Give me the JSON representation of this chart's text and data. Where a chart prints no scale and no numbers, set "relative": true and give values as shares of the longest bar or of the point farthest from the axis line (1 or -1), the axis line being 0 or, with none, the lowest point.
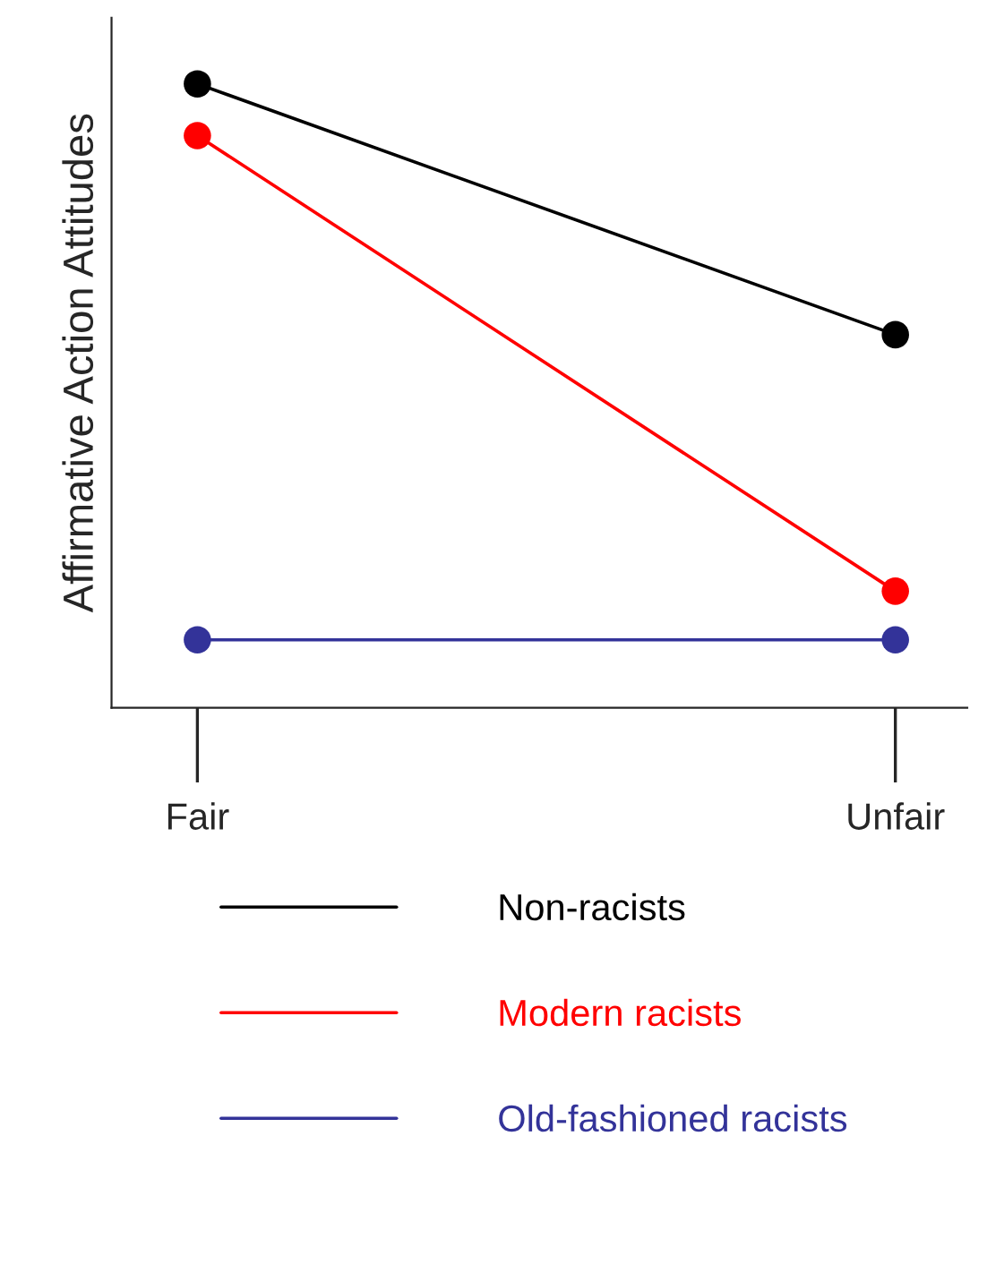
{
  "chart_data": {
    "type": "line",
    "ylabel": "Affirmative Action Attitudes",
    "categories": [
      "Fair",
      "Unfair"
    ],
    "relative": true,
    "marker": "circle",
    "legend": "bottom",
    "grid": false,
    "series": [
      {
        "name": "Non-racists",
        "color": "#000000",
        "values": [
          1,
          0.598
        ]
      },
      {
        "name": "Modern racists",
        "color": "#ff0000",
        "values": [
          0.917,
          0.187
        ]
      },
      {
        "name": "Old-fashioned racists",
        "color": "#333399",
        "values": [
          0.109,
          0.109
        ]
      }
    ]
  }
}
